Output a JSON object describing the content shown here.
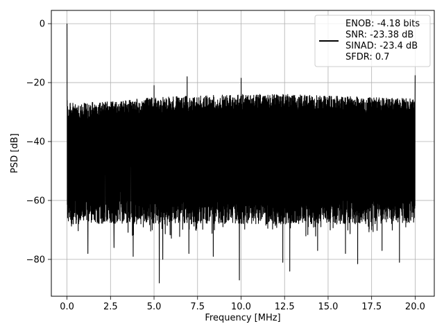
{
  "chart_data": {
    "type": "line",
    "title": "",
    "xlabel": "Frequency [MHz]",
    "ylabel": "PSD [dB]",
    "xlim": [
      -0.9,
      21.1
    ],
    "ylim": [
      -92.5,
      4.5
    ],
    "grid": true,
    "legend_position": "top-right",
    "xticks": [
      0.0,
      2.5,
      5.0,
      7.5,
      10.0,
      12.5,
      15.0,
      17.5,
      20.0
    ],
    "xtick_labels": [
      "0.0",
      "2.5",
      "5.0",
      "7.5",
      "10.0",
      "12.5",
      "15.0",
      "17.5",
      "20.0"
    ],
    "yticks": [
      0,
      -20,
      -40,
      -60,
      -80
    ],
    "ytick_labels": [
      "0",
      "−20",
      "−40",
      "−60",
      "−80"
    ],
    "legend_entries": [
      "ENOB: -4.18 bits",
      "SNR: -23.38 dB",
      "SINAD: -23.4 dB",
      "SFDR: 0.7"
    ],
    "series": [
      {
        "color": "#000000",
        "envelope": {
          "x_range": [
            0.0,
            20.0
          ],
          "typical_max": [
            [
              0.0,
              -27.0
            ],
            [
              2.5,
              -26.5
            ],
            [
              5.0,
              -25.0
            ],
            [
              7.5,
              -24.5
            ],
            [
              10.0,
              -24.0
            ],
            [
              12.5,
              -24.0
            ],
            [
              15.0,
              -24.5
            ],
            [
              17.5,
              -25.0
            ],
            [
              20.0,
              -25.5
            ]
          ],
          "typical_min": -68.0
        },
        "peaks": [
          {
            "x": 0.0,
            "y": 0.0
          },
          {
            "x": 5.0,
            "y": -21.0
          },
          {
            "x": 6.9,
            "y": -18.0
          },
          {
            "x": 10.0,
            "y": -18.5
          },
          {
            "x": 20.0,
            "y": -17.5
          }
        ],
        "dips": [
          {
            "x": 1.2,
            "y": -78.0
          },
          {
            "x": 2.7,
            "y": -76.0
          },
          {
            "x": 3.8,
            "y": -79.0
          },
          {
            "x": 5.3,
            "y": -88.0
          },
          {
            "x": 5.5,
            "y": -80.0
          },
          {
            "x": 7.0,
            "y": -78.0
          },
          {
            "x": 8.4,
            "y": -79.0
          },
          {
            "x": 9.9,
            "y": -87.0
          },
          {
            "x": 12.4,
            "y": -81.0
          },
          {
            "x": 12.8,
            "y": -84.0
          },
          {
            "x": 14.4,
            "y": -77.0
          },
          {
            "x": 16.0,
            "y": -78.0
          },
          {
            "x": 16.7,
            "y": -81.5
          },
          {
            "x": 18.1,
            "y": -77.0
          },
          {
            "x": 19.1,
            "y": -81.0
          }
        ]
      }
    ]
  }
}
